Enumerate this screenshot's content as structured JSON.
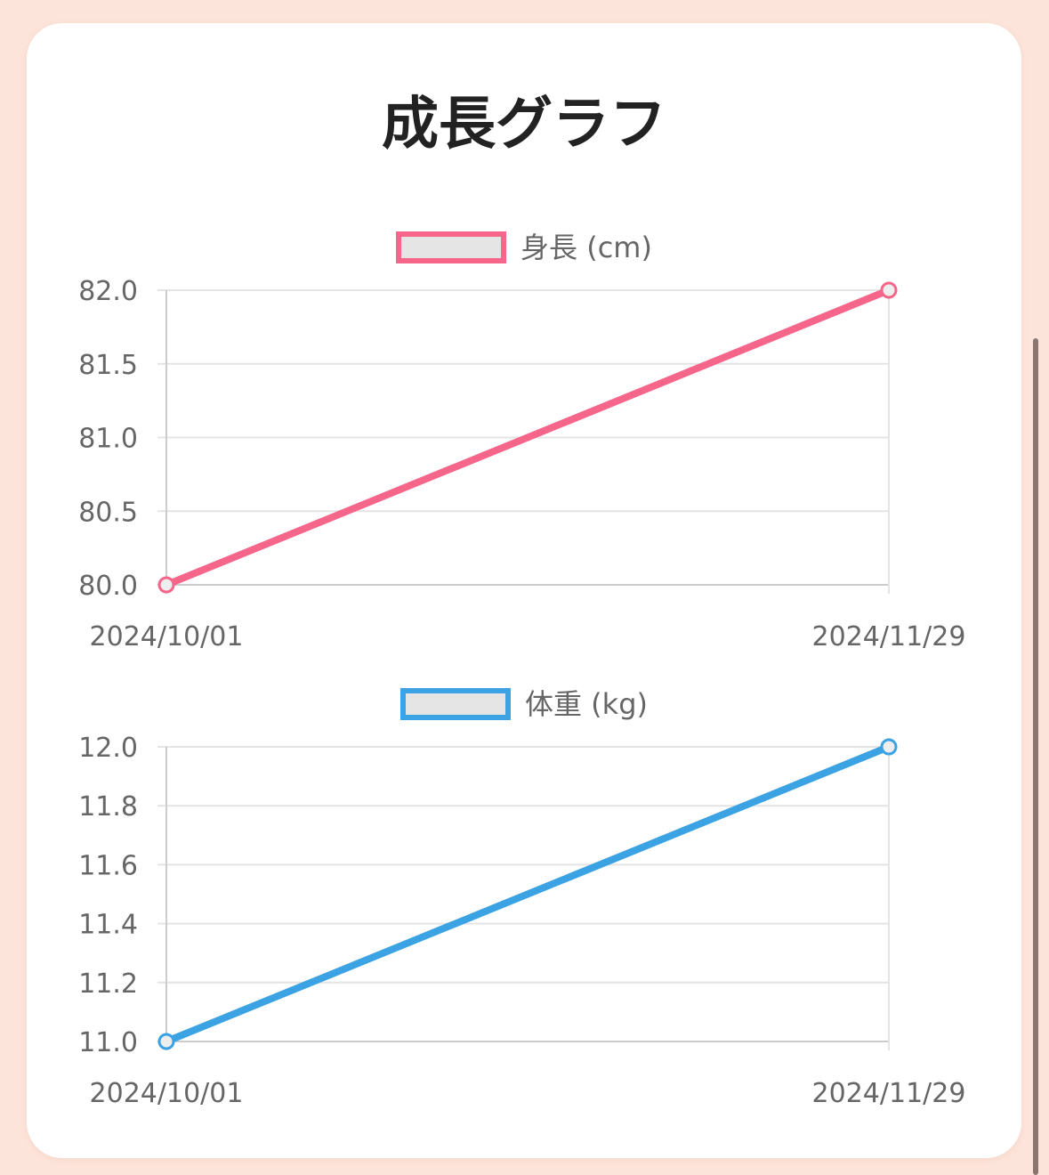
{
  "page": {
    "title": "成長グラフ"
  },
  "chart_data": [
    {
      "type": "line",
      "categories": [
        "2024/10/01",
        "2024/11/29"
      ],
      "series": [
        {
          "name": "身長 (cm)",
          "values": [
            80.0,
            82.0
          ],
          "color": "#f5668a"
        }
      ],
      "ylim": [
        80.0,
        82.0
      ],
      "yticks": [
        "82.0",
        "81.5",
        "81.0",
        "80.5",
        "80.0"
      ],
      "ytick_values": [
        82.0,
        81.5,
        81.0,
        80.5,
        80.0
      ],
      "legend": "top",
      "grid": true
    },
    {
      "type": "line",
      "categories": [
        "2024/10/01",
        "2024/11/29"
      ],
      "series": [
        {
          "name": "体重 (kg)",
          "values": [
            11.0,
            12.0
          ],
          "color": "#3ba2e4"
        }
      ],
      "ylim": [
        11.0,
        12.0
      ],
      "yticks": [
        "12.0",
        "11.8",
        "11.6",
        "11.4",
        "11.2",
        "11.0"
      ],
      "ytick_values": [
        12.0,
        11.8,
        11.6,
        11.4,
        11.2,
        11.0
      ],
      "legend": "top",
      "grid": true
    }
  ]
}
